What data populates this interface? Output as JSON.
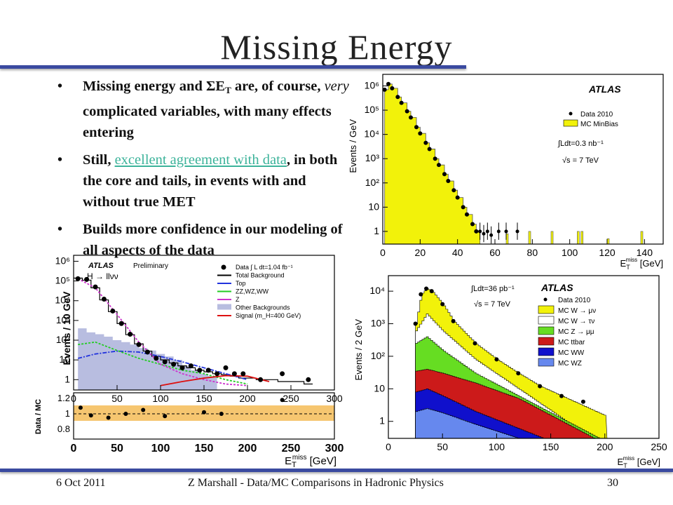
{
  "slide": {
    "title": "Missing Energy",
    "footer": {
      "date": "6 Oct 2011",
      "center": "Z Marshall - Data/MC Comparisons in Hadronic Physics",
      "page": "30"
    }
  },
  "bullets": [
    {
      "pre": "Missing energy and ΣE",
      "sub": "T",
      "post_a": " are, of course, ",
      "em": "very",
      "post_b": " complicated variables, with many effects entering"
    },
    {
      "pre": "Still, ",
      "link": "excellent agreement with data",
      "post": ", in both the core and tails, in events with and without true MET"
    },
    {
      "text": "Builds more confidence in our modeling of all aspects of the data"
    }
  ],
  "colors": {
    "rule": "#3a4aa0",
    "link": "#3cb39a",
    "yellow": "#f2f20a",
    "green": "#66dd22",
    "red": "#cc1a1a",
    "blue": "#1010cc",
    "lightblue": "#6688ee",
    "band": "#f5c060"
  },
  "chart_data": [
    {
      "id": "minbias",
      "type": "area",
      "title": "",
      "xlabel": "E_T^miss [GeV]",
      "ylabel": "Events / GeV",
      "log_y": true,
      "xlim": [
        0,
        150
      ],
      "ylim": [
        0.3,
        3000000
      ],
      "x_ticks": [
        "0",
        "20",
        "40",
        "60",
        "80",
        "100",
        "120",
        "140"
      ],
      "y_ticks": [
        "1",
        "10",
        "10²",
        "10³",
        "10⁴",
        "10⁵",
        "10⁶"
      ],
      "annotations": [
        "ATLAS",
        "∫Ldt=0.3 nb⁻¹",
        "√s = 7 TeV"
      ],
      "legend": {
        "placement": "top-right",
        "entries": [
          "Data 2010",
          "MC MinBias"
        ]
      },
      "series": [
        {
          "name": "Data 2010",
          "x": [
            1,
            3,
            5,
            8,
            10,
            13,
            15,
            18,
            20,
            23,
            25,
            28,
            30,
            33,
            35,
            38,
            40,
            43,
            45,
            48,
            50
          ],
          "values": [
            700000,
            1200000,
            800000,
            350000,
            200000,
            90000,
            50000,
            20000,
            11000,
            4500,
            2500,
            1000,
            550,
            230,
            120,
            50,
            25,
            10,
            5,
            2,
            1
          ]
        },
        {
          "name": "MC MinBias",
          "x": [
            1,
            3,
            5,
            8,
            10,
            13,
            15,
            18,
            20,
            23,
            25,
            28,
            30,
            33,
            35,
            38,
            40,
            43,
            45,
            48,
            50
          ],
          "values": [
            700000,
            1200000,
            800000,
            350000,
            200000,
            90000,
            50000,
            20000,
            11000,
            4500,
            2500,
            1000,
            550,
            230,
            120,
            50,
            25,
            10,
            5,
            2,
            1
          ]
        }
      ]
    },
    {
      "id": "higgs",
      "type": "line",
      "xlabel": "E_T^miss [GeV]",
      "ylabel": "Events / 10 GeV",
      "log_y": true,
      "xlim": [
        0,
        300
      ],
      "ylim": [
        0.3,
        2000000
      ],
      "x_ticks": [
        "0",
        "50",
        "100",
        "150",
        "200",
        "250",
        "300"
      ],
      "y_ticks": [
        "1",
        "10",
        "10²",
        "10³",
        "10⁴",
        "10⁵",
        "10⁶"
      ],
      "ratio_label": "Data / MC",
      "ratio_ticks": [
        "0.8",
        "1",
        "1.2"
      ],
      "annotations": [
        "ATLAS",
        "Preliminary",
        "H → llνν"
      ],
      "legend": {
        "placement": "top-right",
        "entries": [
          "Data ∫ L dt=1.04 fb⁻¹",
          "Total Background",
          "Top",
          "ZZ,WZ,WW",
          "Z",
          "Other Backgrounds",
          "Signal (m_H=400 GeV)"
        ]
      },
      "series": [
        {
          "name": "Data",
          "x": [
            5,
            15,
            25,
            35,
            45,
            55,
            65,
            75,
            85,
            95,
            105,
            115,
            125,
            135,
            145,
            155,
            165,
            175,
            185,
            195,
            215,
            240,
            270
          ],
          "values": [
            130000,
            120000,
            50000,
            12000,
            3000,
            700,
            200,
            60,
            25,
            12,
            8,
            6,
            4,
            5,
            3,
            3,
            2,
            4,
            2,
            2,
            1,
            2,
            1
          ]
        },
        {
          "name": "Total Background",
          "x": [
            5,
            15,
            25,
            35,
            45,
            55,
            65,
            75,
            85,
            95,
            105,
            115,
            125,
            135,
            145,
            155,
            165,
            175,
            185,
            195,
            215,
            240,
            270
          ],
          "values": [
            140000,
            110000,
            45000,
            11000,
            2800,
            700,
            190,
            65,
            28,
            15,
            10,
            7,
            5,
            4,
            3,
            2.5,
            2,
            1.8,
            1.5,
            1.2,
            1,
            0.8,
            0.6
          ]
        },
        {
          "name": "Top",
          "x": [
            5,
            25,
            50,
            75,
            100,
            125,
            150,
            175,
            200
          ],
          "values": [
            12,
            20,
            28,
            25,
            15,
            8,
            4,
            2,
            1
          ]
        },
        {
          "name": "ZZ,WZ,WW",
          "x": [
            5,
            25,
            50,
            75,
            100,
            125,
            150,
            175,
            200
          ],
          "values": [
            60,
            80,
            30,
            12,
            6,
            3,
            2,
            1,
            0.6
          ]
        },
        {
          "name": "Z",
          "x": [
            5,
            25,
            50,
            75,
            100,
            125,
            150,
            175,
            200
          ],
          "values": [
            130000,
            45000,
            2000,
            80,
            6,
            2,
            1,
            0.6,
            0.5
          ]
        },
        {
          "name": "Other Backgrounds",
          "x": [
            5,
            25,
            50,
            75,
            100,
            125,
            150
          ],
          "values": [
            400,
            200,
            100,
            40,
            20,
            5,
            2
          ]
        },
        {
          "name": "Signal (m_H=400 GeV)",
          "x": [
            100,
            125,
            150,
            175,
            200,
            225
          ],
          "values": [
            0.5,
            0.8,
            1.2,
            1.6,
            1.5,
            0.8
          ]
        }
      ]
    },
    {
      "id": "wz",
      "type": "area",
      "xlabel": "E_T^miss [GeV]",
      "ylabel": "Events / 2 GeV",
      "log_y": true,
      "xlim": [
        0,
        250
      ],
      "ylim": [
        0.3,
        30000
      ],
      "x_ticks": [
        "0",
        "50",
        "100",
        "150",
        "200",
        "250"
      ],
      "y_ticks": [
        "1",
        "10",
        "10²",
        "10³",
        "10⁴"
      ],
      "annotations": [
        "∫Ldt=36 pb⁻¹",
        "√s = 7 TeV",
        "ATLAS"
      ],
      "legend": {
        "placement": "top-right",
        "entries": [
          "Data 2010",
          "MC W → μν",
          "MC W → τν",
          "MC Z → μμ",
          "MC ttbar",
          "MC WW",
          "MC WZ"
        ]
      },
      "series": [
        {
          "name": "Data 2010",
          "x": [
            25,
            30,
            35,
            40,
            50,
            60,
            80,
            100,
            120,
            140,
            160,
            180
          ],
          "values": [
            1000,
            8000,
            12000,
            10000,
            4000,
            1200,
            250,
            80,
            30,
            12,
            6,
            4
          ]
        },
        {
          "name": "MC W → μν",
          "x": [
            25,
            30,
            35,
            40,
            50,
            60,
            80,
            100,
            120,
            140,
            160
          ],
          "values": [
            1000,
            8000,
            12000,
            10000,
            4000,
            1200,
            250,
            80,
            30,
            12,
            6
          ]
        },
        {
          "name": "MC W → τν",
          "x": [
            25,
            35,
            50,
            80,
            120
          ],
          "values": [
            600,
            2000,
            600,
            80,
            10
          ]
        },
        {
          "name": "MC Z → μμ",
          "x": [
            25,
            35,
            50,
            80,
            120
          ],
          "values": [
            250,
            400,
            150,
            30,
            6
          ]
        },
        {
          "name": "MC ttbar",
          "x": [
            25,
            35,
            50,
            80,
            120,
            160
          ],
          "values": [
            35,
            40,
            30,
            15,
            5,
            1
          ]
        },
        {
          "name": "MC WW",
          "x": [
            25,
            35,
            50,
            80,
            120
          ],
          "values": [
            8,
            10,
            6,
            2,
            0.6
          ]
        },
        {
          "name": "MC WZ",
          "x": [
            25,
            35,
            50,
            80,
            120
          ],
          "values": [
            2,
            2.5,
            1.8,
            0.8,
            0.3
          ]
        }
      ]
    }
  ]
}
